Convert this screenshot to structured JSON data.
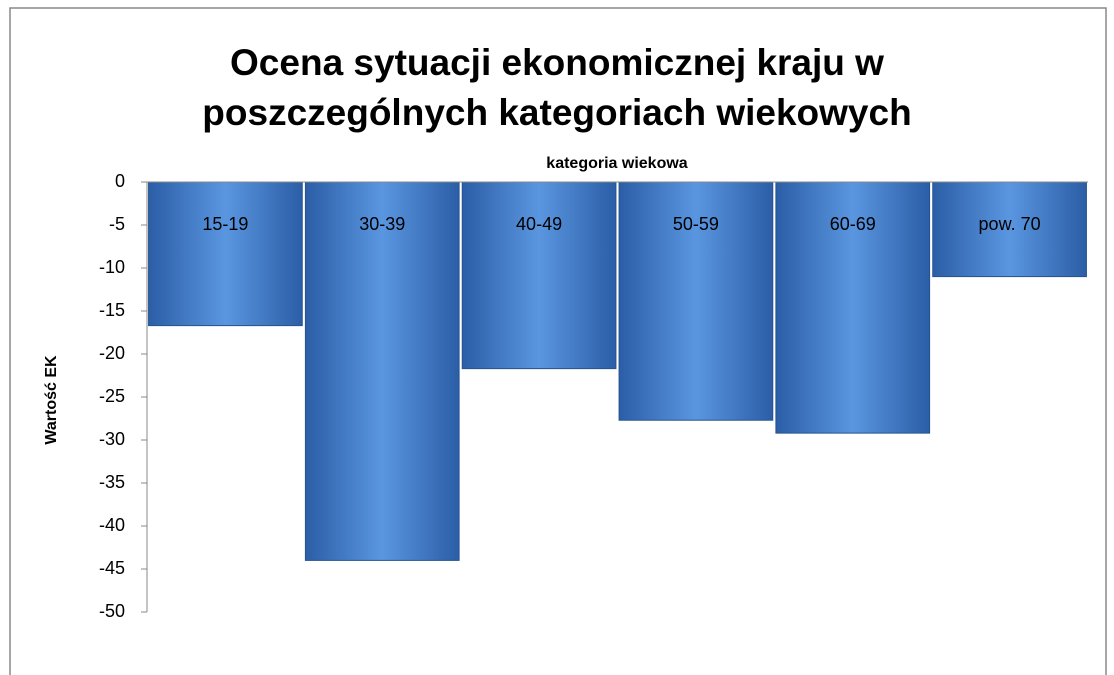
{
  "chart_data": {
    "type": "bar",
    "title": "Ocena sytuacji ekonomicznej kraju w poszczególnych kategoriach wiekowych",
    "x_label": "kategoria wiekowa",
    "y_label": "Wartość EK",
    "categories": [
      "15-19",
      "30-39",
      "40-49",
      "50-59",
      "60-69",
      "pow. 70"
    ],
    "values": [
      -16.7,
      -44,
      -21.7,
      -27.7,
      -29.2,
      -11
    ],
    "color": "#3f7acb",
    "ylim": [
      -50,
      0
    ],
    "yticks": [
      0,
      -5,
      -10,
      -15,
      -20,
      -25,
      -30,
      -35,
      -40,
      -45,
      -50
    ]
  }
}
